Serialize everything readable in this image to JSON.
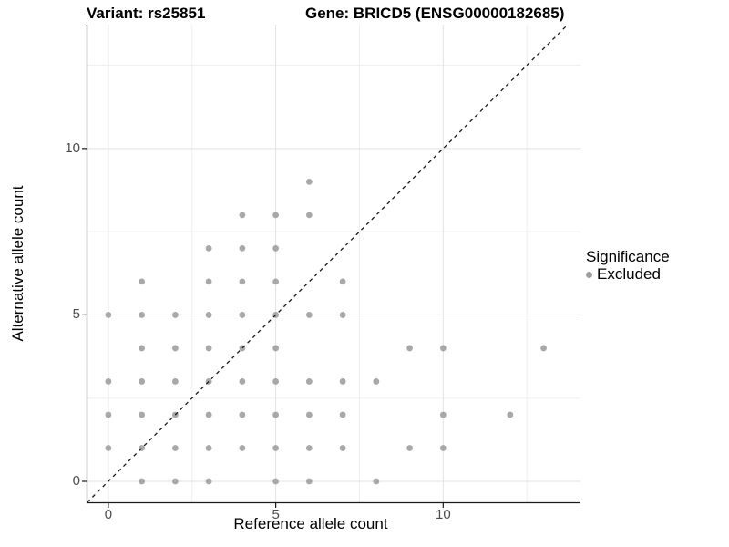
{
  "titles": {
    "variant": "Variant: rs25851",
    "gene": "Gene: BRICD5 (ENSG00000182685)"
  },
  "chart_data": {
    "type": "scatter",
    "title_left": "Variant: rs25851",
    "title_right": "Gene: BRICD5 (ENSG00000182685)",
    "xlabel": "Reference allele count",
    "ylabel": "Alternative allele count",
    "x_ticks": [
      0,
      5,
      10
    ],
    "y_ticks": [
      0,
      5,
      10
    ],
    "x_minor_ticks": [
      2.5,
      7.5,
      12.5
    ],
    "y_minor_ticks": [
      2.5,
      7.5,
      12.5
    ],
    "xlim": [
      -0.65,
      14.1
    ],
    "ylim": [
      -0.63,
      13.72
    ],
    "grid": true,
    "reference_line": {
      "equation": "y = x",
      "style": "dashed",
      "color": "#1a1a1a"
    },
    "legend": {
      "title": "Significance",
      "position": "right",
      "items": [
        {
          "label": "Excluded",
          "color": "#9f9f9f"
        }
      ]
    },
    "series": [
      {
        "name": "Excluded",
        "color": "#9f9f9f",
        "points": [
          [
            1,
            0
          ],
          [
            2,
            0
          ],
          [
            3,
            0
          ],
          [
            5,
            0
          ],
          [
            6,
            0
          ],
          [
            8,
            0
          ],
          [
            0,
            1
          ],
          [
            1,
            1
          ],
          [
            2,
            1
          ],
          [
            3,
            1
          ],
          [
            4,
            1
          ],
          [
            5,
            1
          ],
          [
            6,
            1
          ],
          [
            7,
            1
          ],
          [
            9,
            1
          ],
          [
            10,
            1
          ],
          [
            0,
            2
          ],
          [
            1,
            2
          ],
          [
            2,
            2
          ],
          [
            3,
            2
          ],
          [
            4,
            2
          ],
          [
            5,
            2
          ],
          [
            6,
            2
          ],
          [
            7,
            2
          ],
          [
            10,
            2
          ],
          [
            12,
            2
          ],
          [
            0,
            3
          ],
          [
            1,
            3
          ],
          [
            2,
            3
          ],
          [
            3,
            3
          ],
          [
            4,
            3
          ],
          [
            5,
            3
          ],
          [
            6,
            3
          ],
          [
            7,
            3
          ],
          [
            8,
            3
          ],
          [
            1,
            4
          ],
          [
            2,
            4
          ],
          [
            3,
            4
          ],
          [
            4,
            4
          ],
          [
            5,
            4
          ],
          [
            9,
            4
          ],
          [
            10,
            4
          ],
          [
            13,
            4
          ],
          [
            0,
            5
          ],
          [
            1,
            5
          ],
          [
            2,
            5
          ],
          [
            3,
            5
          ],
          [
            4,
            5
          ],
          [
            5,
            5
          ],
          [
            6,
            5
          ],
          [
            7,
            5
          ],
          [
            1,
            6
          ],
          [
            3,
            6
          ],
          [
            4,
            6
          ],
          [
            5,
            6
          ],
          [
            7,
            6
          ],
          [
            3,
            7
          ],
          [
            4,
            7
          ],
          [
            5,
            7
          ],
          [
            4,
            8
          ],
          [
            5,
            8
          ],
          [
            6,
            8
          ],
          [
            6,
            9
          ]
        ]
      }
    ]
  },
  "style": {
    "point_color": "#9f9f9f",
    "point_radius": 3.4,
    "grid_major_color": "#e2e2e2",
    "grid_minor_color": "#efefef",
    "axis_color": "#1a1a1a",
    "tick_label_color": "#4d4d4d"
  }
}
